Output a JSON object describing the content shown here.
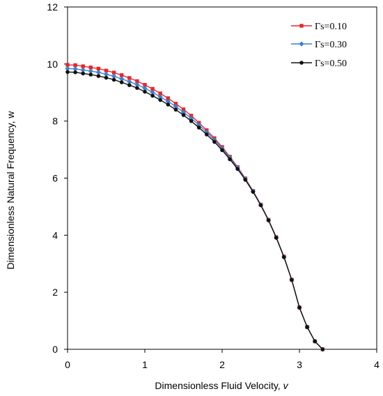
{
  "chart_data": {
    "type": "line",
    "xlabel": "Dimensionless Fluid Velocity, ",
    "xlabel_var": "v",
    "ylabel": "Dimensionless Natural Frequency, w",
    "xlim": [
      0,
      4
    ],
    "ylim": [
      0,
      12
    ],
    "xticks": [
      "0",
      "1",
      "2",
      "3",
      "4"
    ],
    "yticks": [
      "0",
      "2",
      "4",
      "6",
      "8",
      "10",
      "12"
    ],
    "grid": false,
    "legend_position": "top-right",
    "x": [
      0,
      0.1,
      0.2,
      0.3,
      0.4,
      0.5,
      0.6,
      0.7,
      0.8,
      0.9,
      1.0,
      1.1,
      1.2,
      1.3,
      1.4,
      1.5,
      1.6,
      1.7,
      1.8,
      1.9,
      2.0,
      2.1,
      2.2,
      2.3,
      2.4,
      2.5,
      2.6,
      2.7,
      2.8,
      2.9,
      3.0,
      3.1,
      3.2,
      3.3
    ],
    "series": [
      {
        "name": "Γs=0.10",
        "color": "#e8262b",
        "marker": "square",
        "values": [
          9.97,
          9.96,
          9.92,
          9.88,
          9.84,
          9.77,
          9.7,
          9.61,
          9.51,
          9.4,
          9.27,
          9.13,
          8.97,
          8.8,
          8.61,
          8.41,
          8.19,
          7.94,
          7.68,
          7.4,
          7.09,
          6.75,
          6.39,
          5.99,
          5.55,
          5.07,
          4.54,
          3.93,
          3.25,
          2.44,
          1.47,
          0.78,
          0.28,
          0.0
        ]
      },
      {
        "name": "Γs=0.30",
        "color": "#3a7fd1",
        "marker": "diamond",
        "values": [
          9.84,
          9.83,
          9.79,
          9.75,
          9.71,
          9.64,
          9.57,
          9.48,
          9.38,
          9.28,
          9.15,
          9.01,
          8.85,
          8.69,
          8.51,
          8.31,
          8.1,
          7.86,
          7.61,
          7.34,
          7.04,
          6.71,
          6.36,
          5.97,
          5.54,
          5.06,
          4.53,
          3.92,
          3.24,
          2.44,
          1.46,
          0.78,
          0.28,
          0.0
        ]
      },
      {
        "name": "Γs=0.50",
        "color": "#111111",
        "marker": "circle",
        "values": [
          9.72,
          9.71,
          9.67,
          9.63,
          9.58,
          9.52,
          9.45,
          9.36,
          9.26,
          9.16,
          9.03,
          8.89,
          8.74,
          8.58,
          8.4,
          8.21,
          8.0,
          7.77,
          7.53,
          7.27,
          6.98,
          6.66,
          6.32,
          5.94,
          5.52,
          5.05,
          4.52,
          3.91,
          3.23,
          2.43,
          1.46,
          0.78,
          0.28,
          0.0
        ]
      }
    ]
  }
}
